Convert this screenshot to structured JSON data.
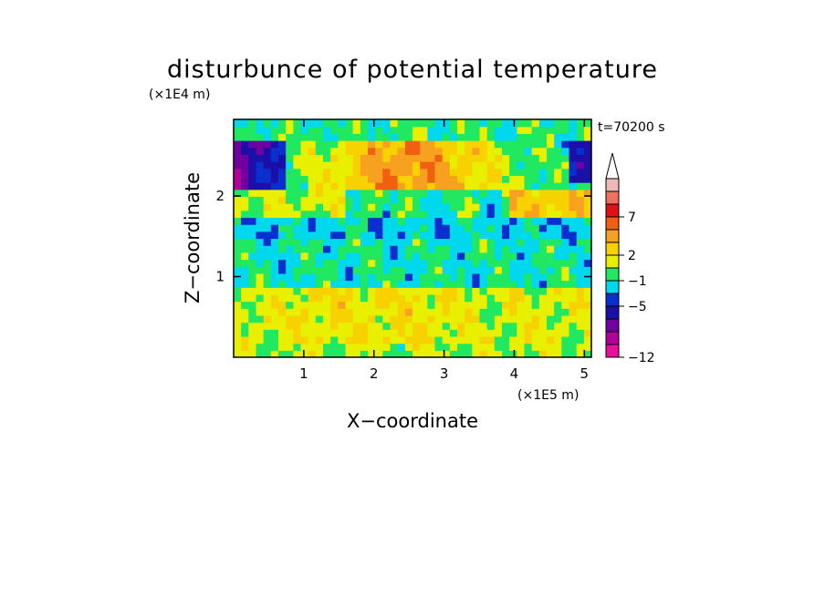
{
  "chart_data": {
    "type": "heatmap",
    "title": "disturbunce of potential temperature",
    "xlabel": "X−coordinate",
    "ylabel": "Z−coordinate",
    "x_unit": "(×1E5 m)",
    "y_unit": "(×1E4 m)",
    "time_label": "t=70200 s",
    "xlim": [
      0,
      5.1
    ],
    "ylim": [
      0,
      2.95
    ],
    "x_ticks": [
      1,
      2,
      3,
      4,
      5
    ],
    "y_ticks": [
      1,
      2
    ],
    "colorbar": {
      "colors": [
        "#e8109a",
        "#b2009a",
        "#70009f",
        "#1a10a8",
        "#0a2ed0",
        "#00d8ee",
        "#20e860",
        "#e8f000",
        "#f8d200",
        "#f8a020",
        "#f06010",
        "#e01018",
        "#f07060",
        "#f0b8b8"
      ],
      "labels": [
        {
          "value": "7",
          "level": 11
        },
        {
          "value": "2",
          "level": 8
        },
        {
          "value": "−1",
          "level": 6
        },
        {
          "value": "−5",
          "level": 4
        },
        {
          "value": "−12",
          "level": 0
        }
      ],
      "extend_top": true
    },
    "z_bands": [
      {
        "z": [
          0.0,
          0.15
        ],
        "dominant": "yellow"
      },
      {
        "z": [
          0.15,
          0.85
        ],
        "dominant": "yellow/orange"
      },
      {
        "z": [
          0.85,
          1.5
        ],
        "dominant": "green"
      },
      {
        "z": [
          1.5,
          1.75
        ],
        "dominant": "cyan/green"
      },
      {
        "z": [
          1.75,
          2.1
        ],
        "dominant": "yellow/orange/cyan"
      },
      {
        "z": [
          2.1,
          2.6
        ],
        "dominant": "orange/red center, blue edges"
      },
      {
        "z": [
          2.6,
          2.95
        ],
        "dominant": "yellow/green/cyan"
      }
    ]
  }
}
